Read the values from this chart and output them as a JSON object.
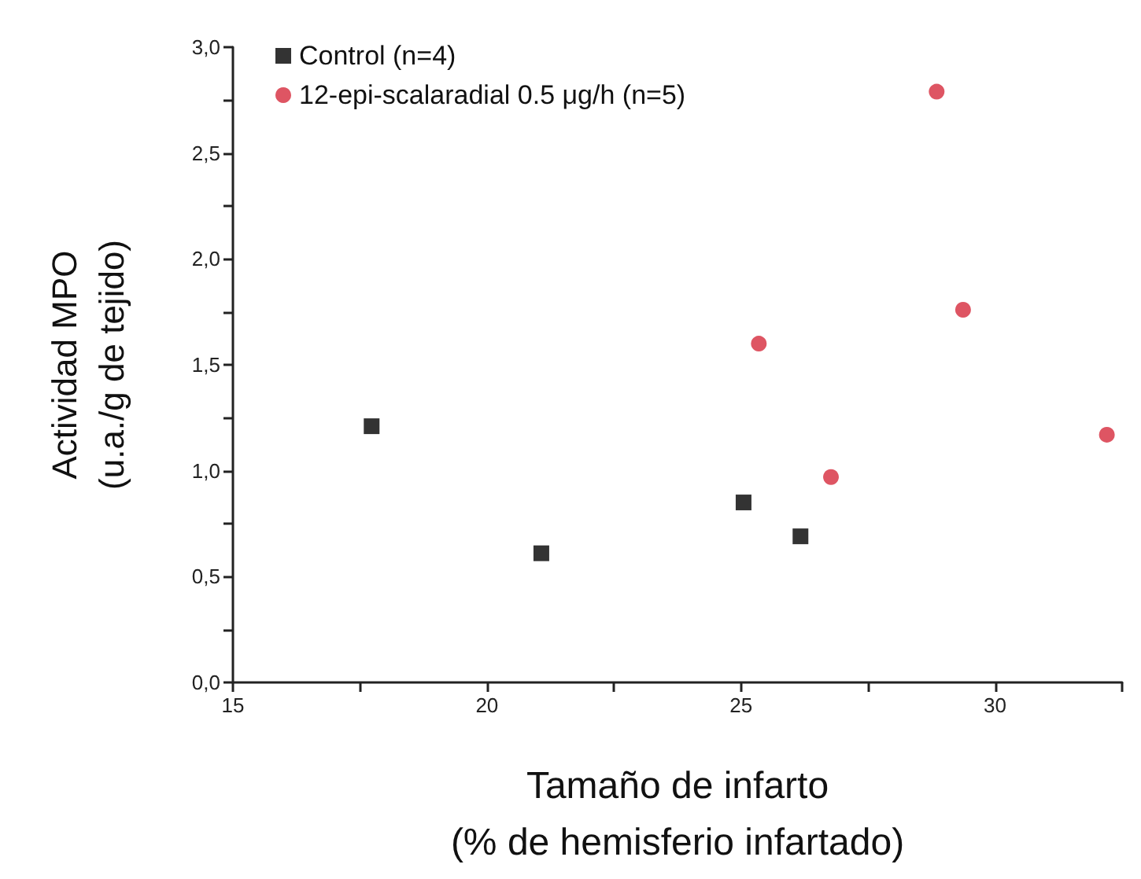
{
  "chart_data": {
    "type": "scatter",
    "xlabel": "Tamaño de infarto\n(% de hemisferio infartado)",
    "ylabel": "Actividad MPO\n(u.a./g de tejido)",
    "series": [
      {
        "name": "Control (n=4)",
        "color": "#000000",
        "marker": "square",
        "x": [
          17.73,
          21.07,
          25.05,
          26.17
        ],
        "values": [
          1.21,
          0.61,
          0.85,
          0.69
        ]
      },
      {
        "name": "12-epi-scalaradial 0.5 μg/h (n=5)",
        "color": "#d62a3c",
        "marker": "circle",
        "x": [
          28.85,
          29.37,
          25.35,
          26.77,
          32.2
        ],
        "values": [
          2.79,
          1.76,
          1.6,
          0.97,
          1.17
        ]
      }
    ],
    "xlim": [
      15,
      32.5
    ],
    "xticks": [
      15,
      {
        "value": 17.5,
        "label": null
      },
      20,
      {
        "value": 22.5,
        "label": null
      },
      25,
      {
        "value": 27.5,
        "label": null
      },
      30,
      {
        "value": 32.5,
        "label": null
      }
    ],
    "ylim": [
      0,
      3
    ],
    "yticks": [
      {
        "value": 0,
        "label": "0,0"
      },
      {
        "value": 0.25,
        "label": null
      },
      {
        "value": 0.5,
        "label": "0,5"
      },
      {
        "value": 0.75,
        "label": null
      },
      {
        "value": 1,
        "label": "1,0"
      },
      {
        "value": 1.25,
        "label": null
      },
      {
        "value": 1.5,
        "label": "1,5"
      },
      {
        "value": 1.75,
        "label": null
      },
      {
        "value": 2,
        "label": "2,0"
      },
      {
        "value": 2.25,
        "label": null
      },
      {
        "value": 2.5,
        "label": "2,5"
      },
      {
        "value": 2.75,
        "label": null
      },
      {
        "value": 3,
        "label": "3,0"
      }
    ],
    "grid": false,
    "legend": "top left"
  }
}
